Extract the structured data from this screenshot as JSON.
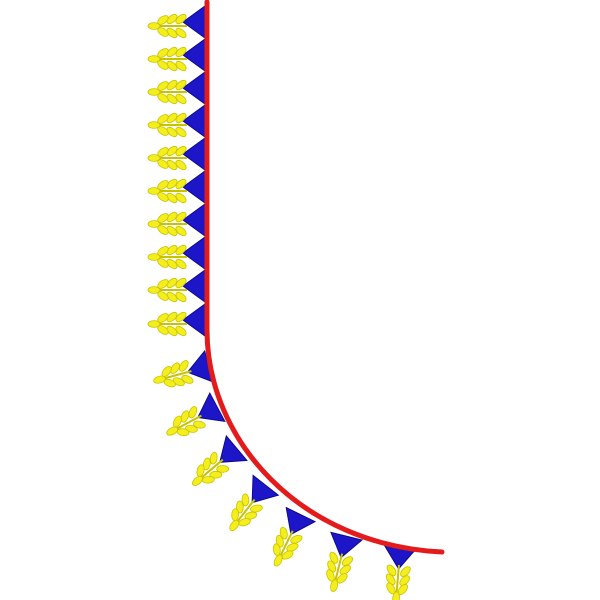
{
  "design": {
    "kind": "embroidery-border-corner",
    "colors": {
      "background": "#ffffff",
      "border_line": "#e31b1b",
      "triangles": "#1d16c8",
      "leaves": "#f4ef1c",
      "leaf_outline": "#c9c200"
    },
    "motif_icons": [
      "triangle-icon",
      "leaf-sprig-icon"
    ],
    "motif_count": 17
  }
}
